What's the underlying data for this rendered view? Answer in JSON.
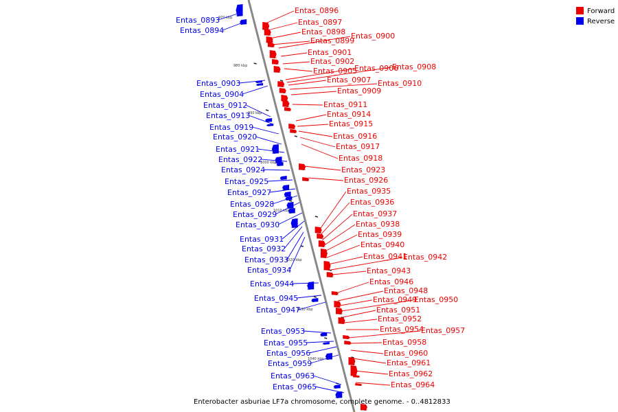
{
  "caption": "Enterobacter asburiae LF7a chromosome, complete genome. - 0..4812833",
  "legend": [
    {
      "label": "Forward",
      "color": "#ee0000"
    },
    {
      "label": "Reverse",
      "color": "#0000ee"
    }
  ],
  "colors": {
    "forward": "#ee0000",
    "reverse": "#0000ee",
    "axis": "#888888",
    "tick": "#222222"
  },
  "kbp_labels": [
    "970 kbp",
    "980 kbp",
    "990 kbp",
    "1000 kbp",
    "1010 kbp",
    "1020 kbp",
    "1030 kbp",
    "1040 kbp"
  ],
  "forward_genes": [
    "Entas_0896",
    "Entas_0897",
    "Entas_0898",
    "Entas_0899",
    "Entas_0900",
    "Entas_0901",
    "Entas_0902",
    "Entas_0905",
    "Entas_0906",
    "Entas_0908",
    "Entas_0907",
    "Entas_0910",
    "Entas_0909",
    "Entas_0911",
    "Entas_0914",
    "Entas_0915",
    "Entas_0916",
    "Entas_0917",
    "Entas_0918",
    "Entas_0923",
    "Entas_0926",
    "Entas_0935",
    "Entas_0936",
    "Entas_0937",
    "Entas_0938",
    "Entas_0939",
    "Entas_0940",
    "Entas_0941",
    "Entas_0942",
    "Entas_0943",
    "Entas_0946",
    "Entas_0948",
    "Entas_0949",
    "Entas_0950",
    "Entas_0951",
    "Entas_0952",
    "Entas_0954",
    "Entas_0957",
    "Entas_0958",
    "Entas_0960",
    "Entas_0961",
    "Entas_0962",
    "Entas_0964"
  ],
  "reverse_genes": [
    "Entas_0893",
    "Entas_0894",
    "Entas_0903",
    "Entas_0904",
    "Entas_0912",
    "Entas_0913",
    "Entas_0919",
    "Entas_0920",
    "Entas_0921",
    "Entas_0922",
    "Entas_0924",
    "Entas_0925",
    "Entas_0927",
    "Entas_0928",
    "Entas_0929",
    "Entas_0930",
    "Entas_0931",
    "Entas_0932",
    "Entas_0933",
    "Entas_0934",
    "Entas_0944",
    "Entas_0945",
    "Entas_0947",
    "Entas_0953",
    "Entas_0955",
    "Entas_0956",
    "Entas_0959",
    "Entas_0963",
    "Entas_0965"
  ]
}
